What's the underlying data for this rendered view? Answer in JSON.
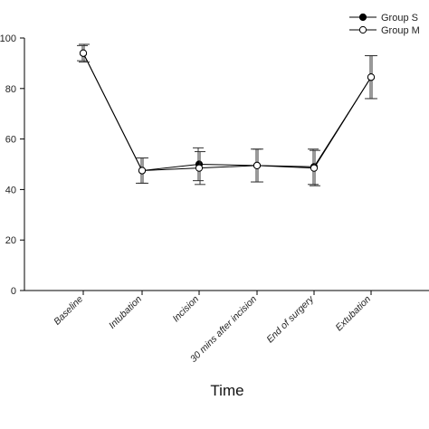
{
  "chart_data": {
    "type": "line",
    "xlabel": "Time",
    "ylabel": "",
    "ylim": [
      0,
      100
    ],
    "yticks": [
      0,
      20,
      40,
      60,
      80,
      100
    ],
    "categories": [
      "Baseline",
      "Intubation",
      "Incision",
      "30 mins after incision",
      "End of surgery",
      "Extubation"
    ],
    "legend_position": "top-right",
    "series": [
      {
        "name": "Group S",
        "marker": "filled-circle",
        "color": "#000000",
        "values": [
          94,
          47.5,
          50,
          49.5,
          49,
          84.5
        ],
        "error": [
          3,
          5,
          6.5,
          6.5,
          7,
          8.5
        ]
      },
      {
        "name": "Group M",
        "marker": "open-circle",
        "color": "#000000",
        "values": [
          94,
          47.5,
          48.5,
          49.5,
          48.5,
          84.5
        ],
        "error": [
          3.5,
          5,
          6.5,
          6.5,
          7,
          8.5
        ]
      }
    ]
  }
}
